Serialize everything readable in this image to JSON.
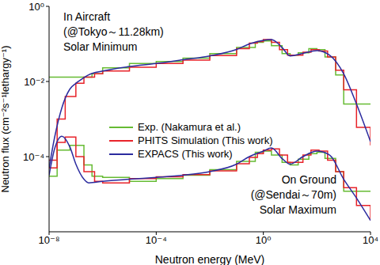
{
  "chart_data": {
    "type": "line",
    "x_label": "Neutron energy (MeV)",
    "y_label": "Neutron flux (cm⁻²s⁻¹lethargy⁻¹)",
    "log": true,
    "xlim": [
      1e-08,
      10000
    ],
    "ylim": [
      1e-06,
      1
    ],
    "xticks": [
      {
        "value": 1e-08,
        "label": "10⁻⁸"
      },
      {
        "value": 0.0001,
        "label": "10⁻⁴"
      },
      {
        "value": 1,
        "label": "10⁰"
      },
      {
        "value": 10000,
        "label": "10⁴"
      }
    ],
    "yticks": [
      {
        "value": 0.0001,
        "label": "10⁻⁴"
      },
      {
        "value": 0.01,
        "label": "10⁻²"
      },
      {
        "value": 1,
        "label": "10⁰"
      }
    ],
    "legend": "center",
    "annotations": [
      [
        "In Aircraft",
        "(@Tokyo～11.28km)",
        "Solar Minimum"
      ],
      [
        "On Ground",
        "(@Sendai～70m)",
        "Solar Maximum"
      ]
    ],
    "series": [
      {
        "name": "Exp. (Nakamura et al.)",
        "color": "#66bb33",
        "line_style": "step",
        "x": [
          1e-08,
          4e-07,
          1e-06,
          1e-05,
          0.0001,
          0.001,
          0.01,
          0.1,
          0.5,
          1,
          2,
          5,
          10,
          20,
          50,
          100,
          200,
          500,
          1000,
          10000
        ],
        "values": [
          0.013,
          0.016,
          0.023,
          0.03,
          0.034,
          0.042,
          0.055,
          0.08,
          0.11,
          0.12,
          0.09,
          0.055,
          0.05,
          0.058,
          0.075,
          0.07,
          0.045,
          0.015,
          0.0025,
          0.0025
        ]
      },
      {
        "name": "PHITS Simulation (This work)",
        "color": "#e8232a",
        "line_style": "step",
        "x": [
          1e-08,
          2e-08,
          4e-08,
          1e-07,
          2e-07,
          5e-07,
          1e-06,
          1e-05,
          0.0001,
          0.001,
          0.01,
          0.1,
          0.3,
          0.6,
          1,
          2,
          4,
          8,
          15,
          30,
          60,
          120,
          250,
          500,
          1000,
          3000,
          10000
        ],
        "values": [
          8e-05,
          0.001,
          0.004,
          0.009,
          0.013,
          0.016,
          0.019,
          0.024,
          0.03,
          0.037,
          0.049,
          0.075,
          0.105,
          0.115,
          0.13,
          0.11,
          0.07,
          0.05,
          0.05,
          0.06,
          0.07,
          0.065,
          0.045,
          0.02,
          0.006,
          0.0006,
          0.0002
        ]
      },
      {
        "name": "EXPACS (This work)",
        "color": "#2b2b9f",
        "line_style": "solid",
        "x": [
          1e-08,
          1.6e-08,
          3e-08,
          6e-08,
          1e-07,
          2e-07,
          3e-07,
          1e-06,
          1e-05,
          0.0001,
          0.001,
          0.01,
          0.1,
          0.3,
          1,
          2,
          5,
          10,
          30,
          100,
          300,
          1000,
          3000,
          10000
        ],
        "values": [
          5e-05,
          0.00032,
          0.002,
          0.0063,
          0.0089,
          0.0126,
          0.015,
          0.019,
          0.025,
          0.03,
          0.038,
          0.048,
          0.071,
          0.1,
          0.125,
          0.13,
          0.08,
          0.048,
          0.056,
          0.066,
          0.05,
          0.016,
          0.0025,
          0.00025
        ]
      },
      {
        "name": "Exp. (Nakamura et al.)",
        "color": "#66bb33",
        "line_style": "step",
        "x": [
          1e-08,
          2e-08,
          6e-08,
          2e-07,
          4e-07,
          1e-06,
          1e-05,
          0.0001,
          0.001,
          0.01,
          0.1,
          0.5,
          1,
          2,
          5,
          10,
          20,
          50,
          100,
          200,
          500,
          1000,
          10000
        ],
        "values": [
          3e-05,
          0.00015,
          0.0002,
          6e-05,
          3e-05,
          2.8e-05,
          2.2e-05,
          2.6e-05,
          3.2e-05,
          4.5e-05,
          7.5e-05,
          0.00013,
          0.00014,
          0.00011,
          7e-05,
          6e-05,
          8.5e-05,
          0.00012,
          0.00013,
          9e-05,
          4e-05,
          1.2e-05,
          1.2e-05
        ]
      },
      {
        "name": "PHITS Simulation (This work)",
        "color": "#e8232a",
        "line_style": "step",
        "x": [
          1e-08,
          2e-08,
          4e-08,
          1e-07,
          2e-07,
          5e-07,
          1e-06,
          1e-05,
          0.0001,
          0.001,
          0.01,
          0.1,
          0.3,
          0.6,
          1,
          2,
          4,
          8,
          15,
          30,
          60,
          120,
          250,
          500,
          1000,
          3000,
          10000
        ],
        "values": [
          5e-05,
          0.00024,
          0.00033,
          0.0001,
          4e-05,
          2.2e-05,
          2e-05,
          2.6e-05,
          2.9e-05,
          3.3e-05,
          4.2e-05,
          6.5e-05,
          9.5e-05,
          0.00012,
          0.00015,
          0.00016,
          0.00011,
          7e-05,
          7e-05,
          0.00011,
          0.00015,
          0.00014,
          8e-05,
          4e-05,
          1.5e-05,
          5e-06,
          2e-06
        ]
      },
      {
        "name": "EXPACS (This work)",
        "color": "#2b2b9f",
        "line_style": "solid",
        "x": [
          1e-08,
          1.6e-08,
          3e-08,
          6e-08,
          1e-07,
          2e-07,
          3e-07,
          1e-06,
          1e-05,
          0.0001,
          0.001,
          0.01,
          0.1,
          0.3,
          1,
          2,
          5,
          10,
          30,
          100,
          300,
          1000,
          3000,
          10000
        ],
        "values": [
          3.2e-05,
          0.00016,
          0.00035,
          0.00018,
          6.3e-05,
          2.5e-05,
          2e-05,
          2.2e-05,
          2.5e-05,
          2.8e-05,
          3.2e-05,
          4e-05,
          6.3e-05,
          0.0001,
          0.00014,
          0.00017,
          8.9e-05,
          6.3e-05,
          0.0001,
          0.00014,
          0.00011,
          2.5e-05,
          7.9e-06,
          2e-06
        ]
      }
    ]
  }
}
